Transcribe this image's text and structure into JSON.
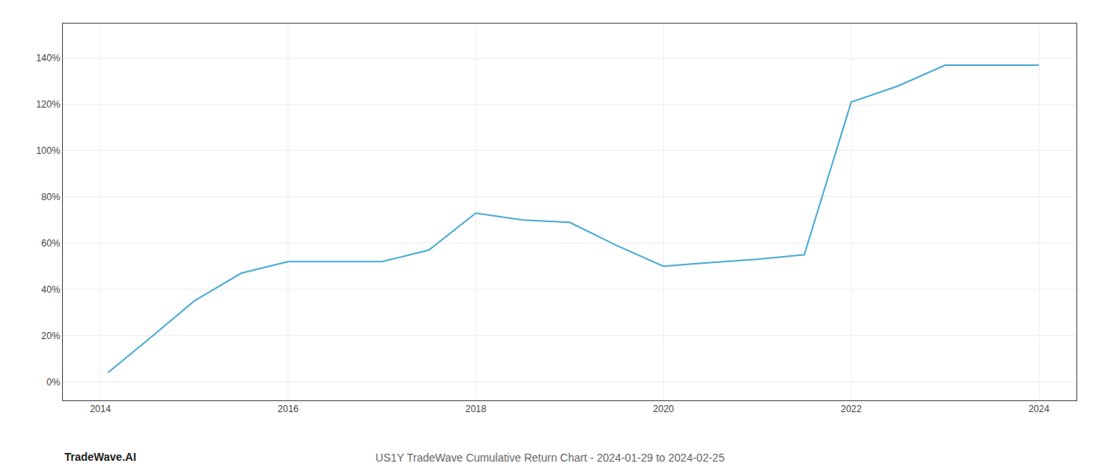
{
  "chart_data": {
    "type": "line",
    "title": "US1Y TradeWave Cumulative Return Chart - 2024-01-29 to 2024-02-25",
    "x": [
      2014.08,
      2014.5,
      2015.0,
      2015.5,
      2016.0,
      2016.3,
      2016.7,
      2017.0,
      2017.5,
      2018.0,
      2018.5,
      2019.0,
      2019.5,
      2020.0,
      2020.3,
      2020.7,
      2021.0,
      2021.5,
      2022.0,
      2022.5,
      2023.0,
      2023.5,
      2024.0
    ],
    "values": [
      4,
      18,
      35,
      47,
      52,
      52,
      52,
      52,
      57,
      73,
      70,
      69,
      59,
      50,
      51,
      52,
      53,
      55,
      121,
      128,
      137,
      137,
      137
    ],
    "color": "#4bacd6",
    "xlim": [
      2013.6,
      2024.4
    ],
    "ylim": [
      -8,
      155
    ],
    "xticks": [
      2014,
      2016,
      2018,
      2020,
      2022,
      2024
    ],
    "yticks": [
      {
        "value": 0,
        "label": "0%"
      },
      {
        "value": 20,
        "label": "20%"
      },
      {
        "value": 40,
        "label": "40%"
      },
      {
        "value": 60,
        "label": "60%"
      },
      {
        "value": 80,
        "label": "80%"
      },
      {
        "value": 100,
        "label": "100%"
      },
      {
        "value": 120,
        "label": "120%"
      },
      {
        "value": 140,
        "label": "140%"
      }
    ],
    "grid": true,
    "annotations": [
      "TradeWave.AI"
    ]
  }
}
